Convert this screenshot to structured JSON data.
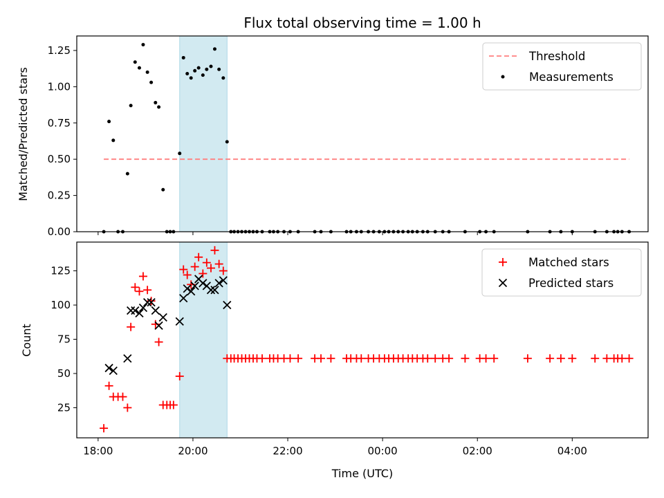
{
  "chart_data": {
    "title": "Flux total observing time = 1.00 h",
    "xlabel": "Time (UTC)",
    "x_ticks": [
      "18:00",
      "20:00",
      "22:00",
      "00:00",
      "02:00",
      "04:00"
    ],
    "x_tick_hours": [
      18,
      20,
      22,
      24,
      26,
      28
    ],
    "xlim_hours": [
      17.55,
      29.6
    ],
    "highlight_span_hours": [
      19.72,
      20.72
    ],
    "highlight_color": "#add8e6",
    "panels": [
      {
        "type": "scatter",
        "ylabel": "Matched/Predicted stars",
        "ylim": [
          0,
          1.35
        ],
        "y_ticks": [
          "0.00",
          "0.25",
          "0.50",
          "0.75",
          "1.00",
          "1.25"
        ],
        "y_tick_values": [
          0,
          0.25,
          0.5,
          0.75,
          1.0,
          1.25
        ],
        "legend_position": "top-right",
        "threshold": {
          "name": "Threshold",
          "value": 0.5,
          "x_range_hours": [
            18.12,
            29.2
          ],
          "color": "#ff7f7f"
        },
        "series": [
          {
            "name": "Measurements",
            "color": "#000000",
            "marker": "dot",
            "points": [
              [
                18.12,
                0
              ],
              [
                18.23,
                0.76
              ],
              [
                18.32,
                0.63
              ],
              [
                18.42,
                0
              ],
              [
                18.52,
                0
              ],
              [
                18.62,
                0.4
              ],
              [
                18.69,
                0.87
              ],
              [
                18.78,
                1.17
              ],
              [
                18.87,
                1.13
              ],
              [
                18.95,
                1.29
              ],
              [
                19.04,
                1.1
              ],
              [
                19.12,
                1.03
              ],
              [
                19.21,
                0.89
              ],
              [
                19.28,
                0.86
              ],
              [
                19.37,
                0.29
              ],
              [
                19.45,
                0
              ],
              [
                19.52,
                0
              ],
              [
                19.59,
                0
              ],
              [
                19.72,
                0.54
              ],
              [
                19.8,
                1.2
              ],
              [
                19.88,
                1.09
              ],
              [
                19.96,
                1.06
              ],
              [
                20.04,
                1.11
              ],
              [
                20.12,
                1.13
              ],
              [
                20.21,
                1.08
              ],
              [
                20.29,
                1.12
              ],
              [
                20.38,
                1.14
              ],
              [
                20.46,
                1.26
              ],
              [
                20.55,
                1.12
              ],
              [
                20.64,
                1.06
              ],
              [
                20.72,
                0.62
              ],
              [
                20.8,
                0
              ],
              [
                20.87,
                0
              ],
              [
                20.95,
                0
              ],
              [
                21.03,
                0
              ],
              [
                21.11,
                0
              ],
              [
                21.19,
                0
              ],
              [
                21.27,
                0
              ],
              [
                21.35,
                0
              ],
              [
                21.46,
                0
              ],
              [
                21.62,
                0
              ],
              [
                21.7,
                0
              ],
              [
                21.79,
                0
              ],
              [
                21.92,
                0
              ],
              [
                22.05,
                0
              ],
              [
                22.22,
                0
              ],
              [
                22.57,
                0
              ],
              [
                22.7,
                0
              ],
              [
                22.91,
                0
              ],
              [
                23.24,
                0
              ],
              [
                23.33,
                0
              ],
              [
                23.45,
                0
              ],
              [
                23.55,
                0
              ],
              [
                23.7,
                0
              ],
              [
                23.81,
                0
              ],
              [
                23.93,
                0
              ],
              [
                24.04,
                0
              ],
              [
                24.13,
                0
              ],
              [
                24.23,
                0
              ],
              [
                24.33,
                0
              ],
              [
                24.43,
                0
              ],
              [
                24.54,
                0
              ],
              [
                24.63,
                0
              ],
              [
                24.73,
                0
              ],
              [
                24.85,
                0
              ],
              [
                24.95,
                0
              ],
              [
                25.11,
                0
              ],
              [
                25.27,
                0
              ],
              [
                25.4,
                0
              ],
              [
                25.74,
                0
              ],
              [
                26.05,
                0
              ],
              [
                26.18,
                0
              ],
              [
                26.35,
                0
              ],
              [
                27.06,
                0
              ],
              [
                27.53,
                0
              ],
              [
                27.76,
                0
              ],
              [
                28.0,
                0
              ],
              [
                28.48,
                0
              ],
              [
                28.73,
                0
              ],
              [
                28.88,
                0
              ],
              [
                28.96,
                0
              ],
              [
                29.05,
                0
              ],
              [
                29.2,
                0
              ]
            ]
          }
        ]
      },
      {
        "type": "scatter",
        "ylabel": "Count",
        "ylim": [
          3,
          146
        ],
        "y_ticks": [
          "25",
          "50",
          "75",
          "100",
          "125"
        ],
        "y_tick_values": [
          25,
          50,
          75,
          100,
          125
        ],
        "legend_position": "top-right",
        "series": [
          {
            "name": "Matched stars",
            "color": "#ff0000",
            "marker": "plus",
            "points": [
              [
                18.12,
                10
              ],
              [
                18.23,
                41
              ],
              [
                18.32,
                33
              ],
              [
                18.42,
                33
              ],
              [
                18.52,
                33
              ],
              [
                18.62,
                25
              ],
              [
                18.69,
                84
              ],
              [
                18.78,
                113
              ],
              [
                18.87,
                110
              ],
              [
                18.95,
                121
              ],
              [
                19.04,
                111
              ],
              [
                19.12,
                103
              ],
              [
                19.21,
                86
              ],
              [
                19.28,
                73
              ],
              [
                19.37,
                27
              ],
              [
                19.45,
                27
              ],
              [
                19.52,
                27
              ],
              [
                19.59,
                27
              ],
              [
                19.72,
                48
              ],
              [
                19.8,
                126
              ],
              [
                19.88,
                122
              ],
              [
                19.96,
                115
              ],
              [
                20.04,
                128
              ],
              [
                20.12,
                135
              ],
              [
                20.21,
                123
              ],
              [
                20.29,
                131
              ],
              [
                20.38,
                127
              ],
              [
                20.46,
                140
              ],
              [
                20.55,
                130
              ],
              [
                20.64,
                125
              ],
              [
                20.72,
                61
              ],
              [
                20.8,
                61
              ],
              [
                20.87,
                61
              ],
              [
                20.95,
                61
              ],
              [
                21.03,
                61
              ],
              [
                21.11,
                61
              ],
              [
                21.19,
                61
              ],
              [
                21.27,
                61
              ],
              [
                21.35,
                61
              ],
              [
                21.46,
                61
              ],
              [
                21.62,
                61
              ],
              [
                21.7,
                61
              ],
              [
                21.79,
                61
              ],
              [
                21.92,
                61
              ],
              [
                22.05,
                61
              ],
              [
                22.22,
                61
              ],
              [
                22.57,
                61
              ],
              [
                22.7,
                61
              ],
              [
                22.91,
                61
              ],
              [
                23.24,
                61
              ],
              [
                23.33,
                61
              ],
              [
                23.45,
                61
              ],
              [
                23.55,
                61
              ],
              [
                23.7,
                61
              ],
              [
                23.81,
                61
              ],
              [
                23.93,
                61
              ],
              [
                24.04,
                61
              ],
              [
                24.13,
                61
              ],
              [
                24.23,
                61
              ],
              [
                24.33,
                61
              ],
              [
                24.43,
                61
              ],
              [
                24.54,
                61
              ],
              [
                24.63,
                61
              ],
              [
                24.73,
                61
              ],
              [
                24.85,
                61
              ],
              [
                24.95,
                61
              ],
              [
                25.11,
                61
              ],
              [
                25.27,
                61
              ],
              [
                25.4,
                61
              ],
              [
                25.74,
                61
              ],
              [
                26.05,
                61
              ],
              [
                26.18,
                61
              ],
              [
                26.35,
                61
              ],
              [
                27.06,
                61
              ],
              [
                27.53,
                61
              ],
              [
                27.76,
                61
              ],
              [
                28.0,
                61
              ],
              [
                28.48,
                61
              ],
              [
                28.73,
                61
              ],
              [
                28.88,
                61
              ],
              [
                28.96,
                61
              ],
              [
                29.05,
                61
              ],
              [
                29.2,
                61
              ]
            ]
          },
          {
            "name": "Predicted stars",
            "color": "#000000",
            "marker": "x",
            "points": [
              [
                18.23,
                54
              ],
              [
                18.32,
                52
              ],
              [
                18.62,
                61
              ],
              [
                18.69,
                96
              ],
              [
                18.78,
                96
              ],
              [
                18.87,
                94
              ],
              [
                18.95,
                98
              ],
              [
                19.04,
                102
              ],
              [
                19.12,
                102
              ],
              [
                19.21,
                96
              ],
              [
                19.28,
                85
              ],
              [
                19.37,
                91
              ],
              [
                19.72,
                88
              ],
              [
                19.8,
                105
              ],
              [
                19.88,
                112
              ],
              [
                19.96,
                110
              ],
              [
                20.04,
                114
              ],
              [
                20.12,
                119
              ],
              [
                20.21,
                116
              ],
              [
                20.29,
                114
              ],
              [
                20.38,
                111
              ],
              [
                20.46,
                111
              ],
              [
                20.55,
                116
              ],
              [
                20.64,
                118
              ],
              [
                20.72,
                100
              ]
            ]
          }
        ]
      }
    ]
  }
}
